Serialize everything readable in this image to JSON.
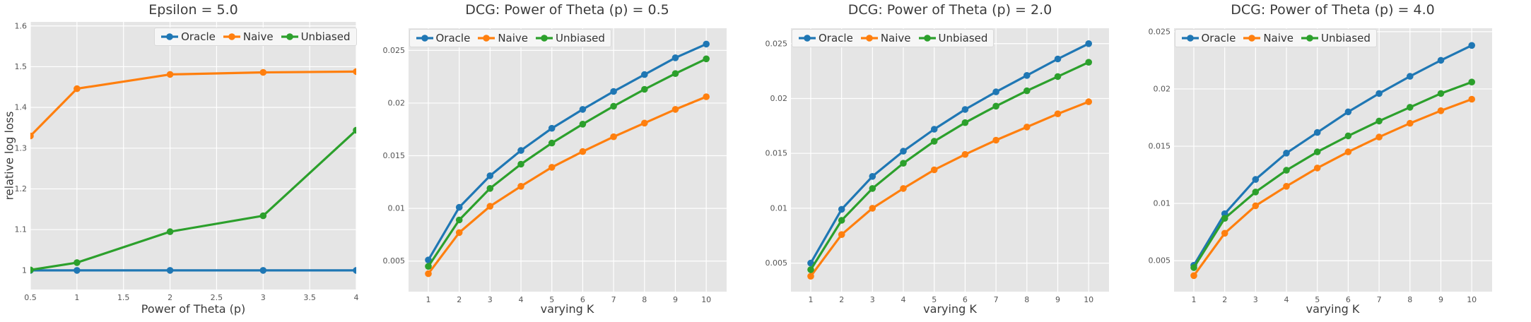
{
  "figure": {
    "background": "#ffffff",
    "plot_background": "#e5e5e5",
    "grid_color": "#ffffff",
    "tick_label_color": "#555555",
    "text_color": "#3b3b3b",
    "legend_background": "#f6f6f6",
    "legend_border": "#d9d9d9"
  },
  "series_colors": {
    "Oracle": "#1f77b4",
    "Naive": "#ff7f0e",
    "Unbiased": "#2ca02c"
  },
  "chart_data": [
    {
      "type": "line",
      "title": "Epsilon = 5.0",
      "xlabel": "Power of Theta (p)",
      "ylabel": "relative log loss",
      "legend_position": "upper right",
      "grid": true,
      "x": [
        0.5,
        1,
        2,
        3,
        4
      ],
      "xticks": [
        0.5,
        1,
        1.5,
        2,
        2.5,
        3,
        3.5,
        4
      ],
      "xtick_labels": [
        "0.5",
        "1",
        "1.5",
        "2",
        "2.5",
        "3",
        "3.5",
        "4"
      ],
      "yticks": [
        1,
        1.1,
        1.2,
        1.3,
        1.4,
        1.5,
        1.6
      ],
      "ytick_labels": [
        "1",
        "1.1",
        "1.2",
        "1.3",
        "1.4",
        "1.5",
        "1.6"
      ],
      "xlim": [
        0.5,
        4
      ],
      "ylim": [
        0.953,
        1.61
      ],
      "series": [
        {
          "name": "Oracle",
          "values": [
            1.0,
            1.0,
            1.0,
            1.0,
            1.0
          ]
        },
        {
          "name": "Naive",
          "values": [
            1.33,
            1.446,
            1.481,
            1.486,
            1.488
          ]
        },
        {
          "name": "Unbiased",
          "values": [
            1.001,
            1.019,
            1.095,
            1.134,
            1.344
          ]
        }
      ]
    },
    {
      "type": "line",
      "title": "DCG: Power of Theta (p) = 0.5",
      "xlabel": "varying K",
      "ylabel": "",
      "legend_position": "upper left",
      "grid": true,
      "x": [
        1,
        2,
        3,
        4,
        5,
        6,
        7,
        8,
        9,
        10
      ],
      "xticks": [
        1,
        2,
        3,
        4,
        5,
        6,
        7,
        8,
        9,
        10
      ],
      "xtick_labels": [
        "1",
        "2",
        "3",
        "4",
        "5",
        "6",
        "7",
        "8",
        "9",
        "10"
      ],
      "yticks": [
        0.005,
        0.01,
        0.015,
        0.02,
        0.025
      ],
      "ytick_labels": [
        "0.005",
        "0.01",
        "0.015",
        "0.02",
        "0.025"
      ],
      "xlim": [
        0.36,
        10.66
      ],
      "ylim": [
        0.0021,
        0.0271
      ],
      "series": [
        {
          "name": "Oracle",
          "values": [
            0.0051,
            0.0101,
            0.0131,
            0.0155,
            0.0176,
            0.0194,
            0.0211,
            0.0227,
            0.0243,
            0.0256
          ]
        },
        {
          "name": "Naive",
          "values": [
            0.0038,
            0.0077,
            0.0102,
            0.0121,
            0.0139,
            0.0154,
            0.0168,
            0.0181,
            0.0194,
            0.0206
          ]
        },
        {
          "name": "Unbiased",
          "values": [
            0.0045,
            0.0089,
            0.0119,
            0.0142,
            0.0162,
            0.018,
            0.0197,
            0.0213,
            0.0228,
            0.0242
          ]
        }
      ]
    },
    {
      "type": "line",
      "title": "DCG: Power of Theta (p) = 2.0",
      "xlabel": "varying K",
      "ylabel": "",
      "legend_position": "upper left",
      "grid": true,
      "x": [
        1,
        2,
        3,
        4,
        5,
        6,
        7,
        8,
        9,
        10
      ],
      "xticks": [
        1,
        2,
        3,
        4,
        5,
        6,
        7,
        8,
        9,
        10
      ],
      "xtick_labels": [
        "1",
        "2",
        "3",
        "4",
        "5",
        "6",
        "7",
        "8",
        "9",
        "10"
      ],
      "yticks": [
        0.005,
        0.01,
        0.015,
        0.02,
        0.025
      ],
      "ytick_labels": [
        "0.005",
        "0.01",
        "0.015",
        "0.02",
        "0.025"
      ],
      "xlim": [
        0.36,
        10.66
      ],
      "ylim": [
        0.0024,
        0.0264
      ],
      "series": [
        {
          "name": "Oracle",
          "values": [
            0.005,
            0.0099,
            0.0129,
            0.0152,
            0.0172,
            0.019,
            0.0206,
            0.0221,
            0.0236,
            0.025
          ]
        },
        {
          "name": "Naive",
          "values": [
            0.0038,
            0.0076,
            0.01,
            0.0118,
            0.0135,
            0.0149,
            0.0162,
            0.0174,
            0.0186,
            0.0197
          ]
        },
        {
          "name": "Unbiased",
          "values": [
            0.0044,
            0.0089,
            0.0118,
            0.0141,
            0.0161,
            0.0178,
            0.0193,
            0.0207,
            0.022,
            0.0233
          ]
        }
      ]
    },
    {
      "type": "line",
      "title": "DCG: Power of Theta (p) = 4.0",
      "xlabel": "varying K",
      "ylabel": "",
      "legend_position": "upper left",
      "grid": true,
      "x": [
        1,
        2,
        3,
        4,
        5,
        6,
        7,
        8,
        9,
        10
      ],
      "xticks": [
        1,
        2,
        3,
        4,
        5,
        6,
        7,
        8,
        9,
        10
      ],
      "xtick_labels": [
        "1",
        "2",
        "3",
        "4",
        "5",
        "6",
        "7",
        "8",
        "9",
        "10"
      ],
      "yticks": [
        0.005,
        0.01,
        0.015,
        0.02,
        0.025
      ],
      "ytick_labels": [
        "0.005",
        "0.01",
        "0.015",
        "0.02",
        "0.025"
      ],
      "xlim": [
        0.36,
        10.66
      ],
      "ylim": [
        0.0023,
        0.0253
      ],
      "series": [
        {
          "name": "Oracle",
          "values": [
            0.0046,
            0.0091,
            0.0121,
            0.0144,
            0.0162,
            0.018,
            0.0196,
            0.0211,
            0.0225,
            0.0238
          ]
        },
        {
          "name": "Naive",
          "values": [
            0.0037,
            0.0074,
            0.0098,
            0.0115,
            0.0131,
            0.0145,
            0.0158,
            0.017,
            0.0181,
            0.0191
          ]
        },
        {
          "name": "Unbiased",
          "values": [
            0.0044,
            0.0087,
            0.011,
            0.0129,
            0.0145,
            0.0159,
            0.0172,
            0.0184,
            0.0196,
            0.0206
          ]
        }
      ]
    }
  ]
}
